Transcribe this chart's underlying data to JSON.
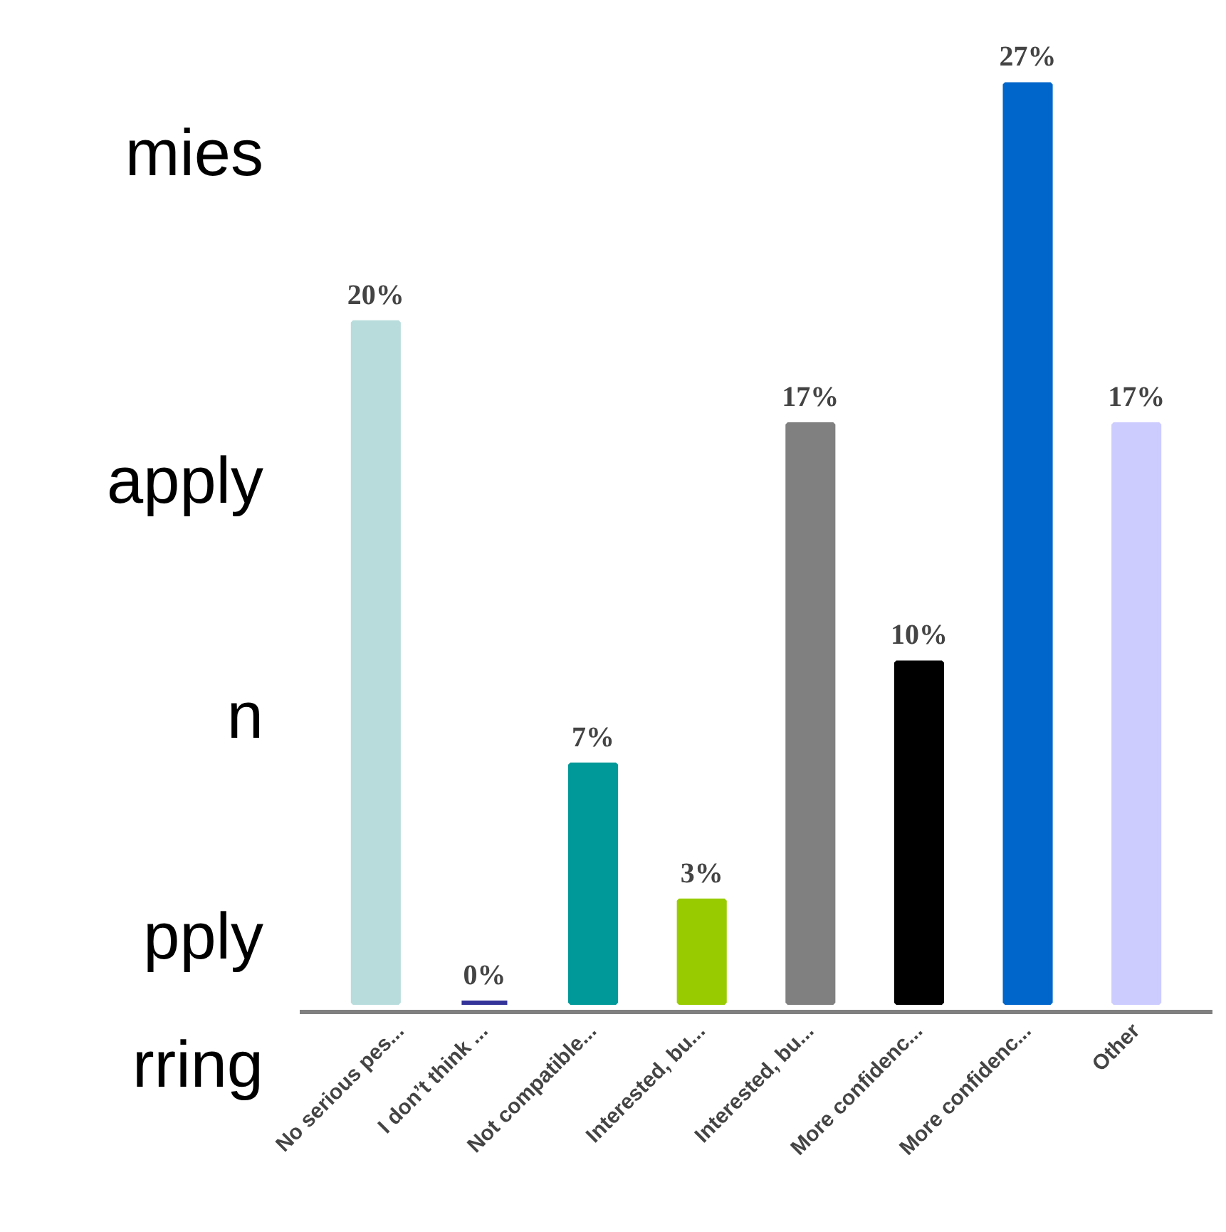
{
  "chart_data": {
    "type": "bar",
    "categories": [
      "No serious pes...",
      "I don’t think ...",
      "Not compatible...",
      "Interested, bu...",
      "Interested, bu...",
      "More confidenc...",
      "More confidenc...",
      "Other"
    ],
    "values": [
      20,
      0,
      7,
      3,
      17,
      10,
      27,
      17
    ],
    "colors": [
      "#b8dcdc",
      "#333399",
      "#009999",
      "#99cc00",
      "#808080",
      "#000000",
      "#0066cc",
      "#ccccff"
    ],
    "value_labels": [
      "20%",
      "0%",
      "7%",
      "3%",
      "17%",
      "10%",
      "27%",
      "17%"
    ],
    "annotations": [
      "mies",
      "apply",
      "n",
      "pply",
      "rring"
    ],
    "grid": false
  }
}
